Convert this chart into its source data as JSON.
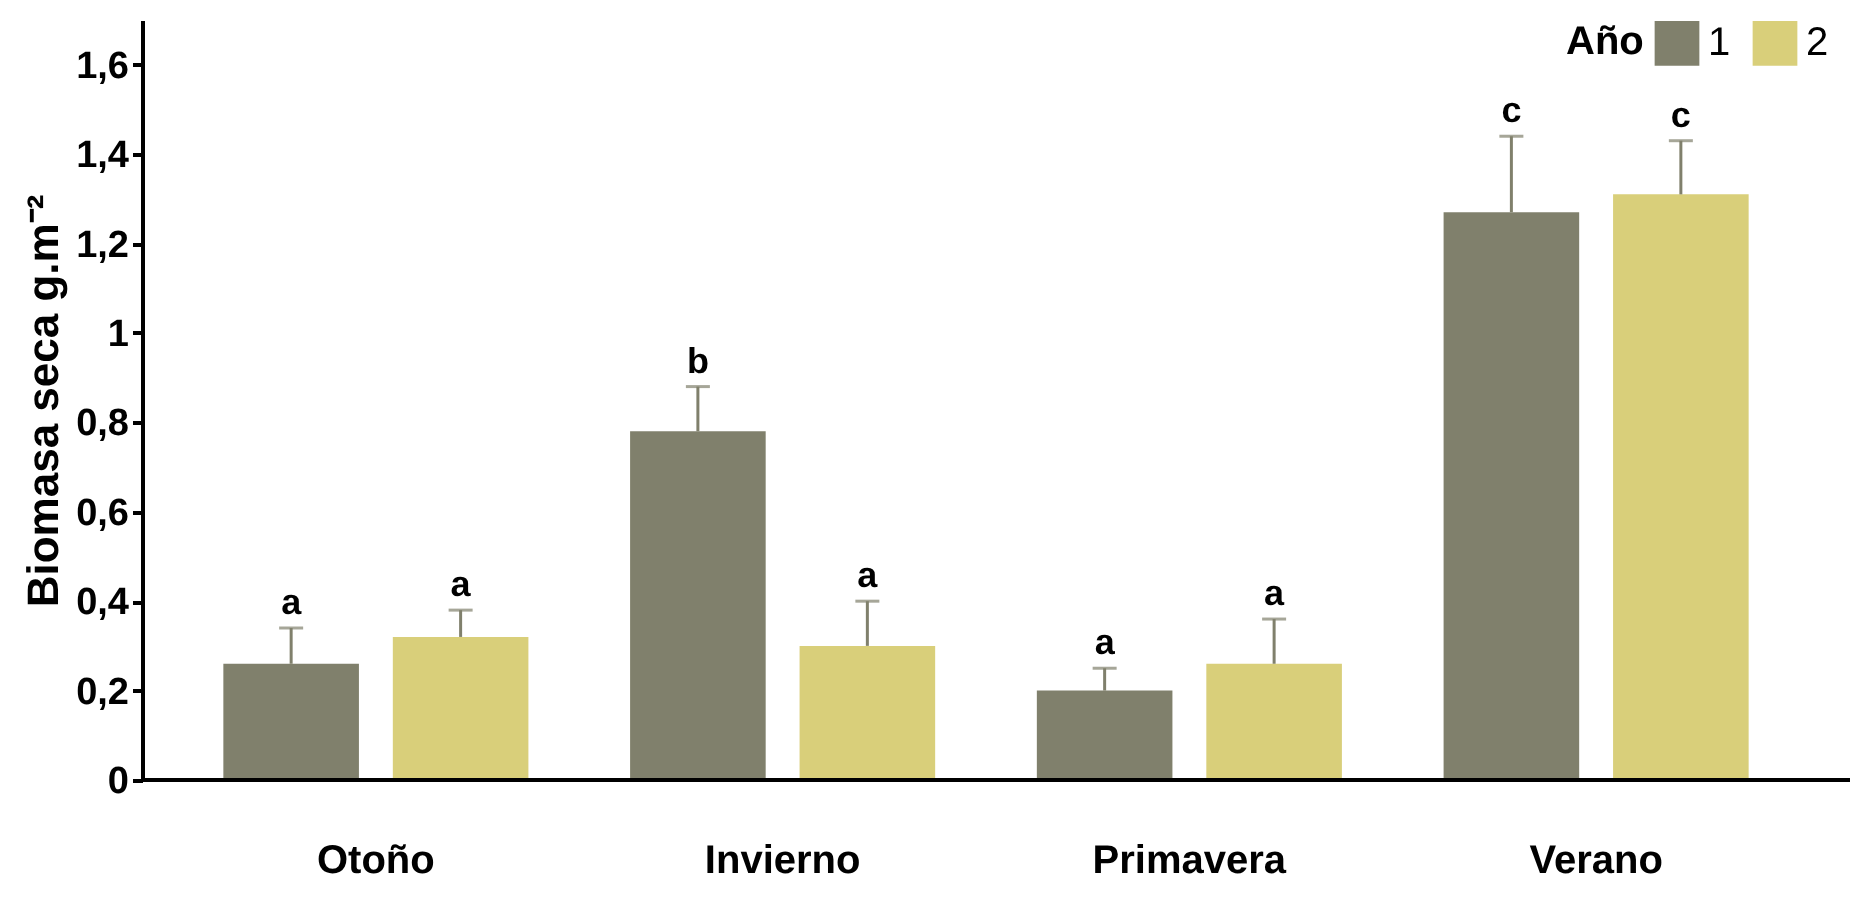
{
  "chart_data": {
    "type": "bar",
    "ylabel": "Biomasa seca g.m⁻²",
    "legend_title": "Año",
    "legend": "top right",
    "grid": false,
    "categories": [
      "Otoño",
      "Invierno",
      "Primavera",
      "Verano"
    ],
    "series": [
      {
        "name": "1",
        "color": "#80806c",
        "values": [
          0.26,
          0.78,
          0.2,
          1.27
        ],
        "errors": [
          [
            0.26,
            0.34
          ],
          [
            0.78,
            0.88
          ],
          [
            0.2,
            0.25
          ],
          [
            1.27,
            1.44
          ]
        ]
      },
      {
        "name": "2",
        "color": "#d9cf7a",
        "values": [
          0.32,
          0.3,
          0.26,
          1.31
        ],
        "errors": [
          [
            0.32,
            0.38
          ],
          [
            0.3,
            0.4
          ],
          [
            0.26,
            0.36
          ],
          [
            1.31,
            1.43
          ]
        ]
      }
    ],
    "ylim": [
      0,
      1.7
    ],
    "yticks": [
      0,
      {
        "value": 0.2,
        "label": "0,2"
      },
      {
        "value": 0.4,
        "label": "0,4"
      },
      {
        "value": 0.6,
        "label": "0,6"
      },
      {
        "value": 0.8,
        "label": "0,8"
      },
      1,
      {
        "value": 1.2,
        "label": "1,2"
      },
      {
        "value": 1.4,
        "label": "1,4"
      },
      {
        "value": 1.6,
        "label": "1,6"
      }
    ],
    "annotations": [
      "a",
      "a",
      "b",
      "a",
      "a",
      "a",
      "c",
      "c"
    ]
  }
}
